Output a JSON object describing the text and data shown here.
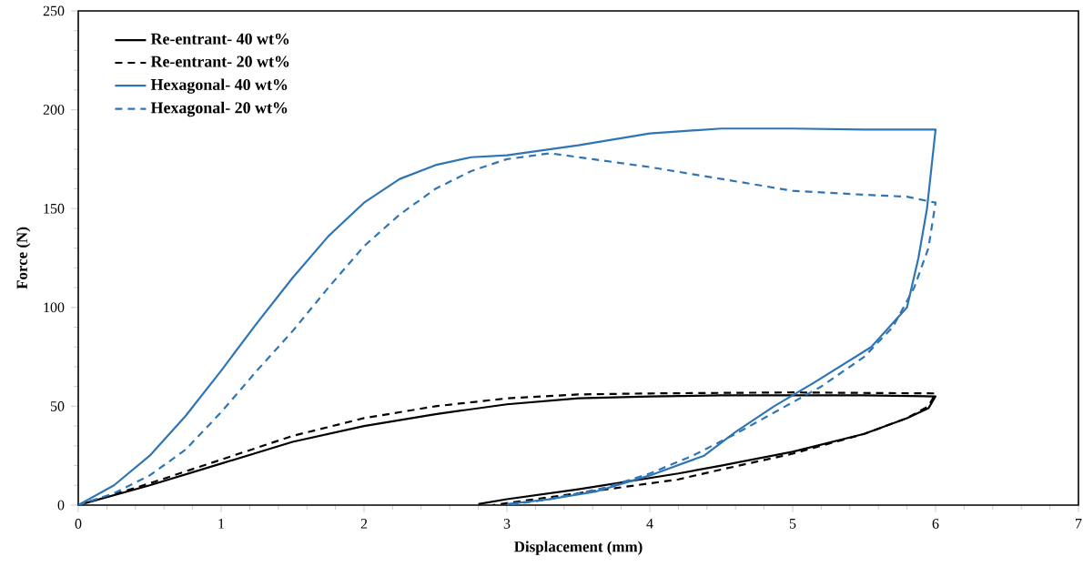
{
  "chart_data": {
    "type": "line",
    "xlabel": "Displacement (mm)",
    "ylabel": "Force (N)",
    "xlim": [
      0,
      7
    ],
    "ylim": [
      0,
      250
    ],
    "xticks": [
      0,
      1,
      2,
      3,
      4,
      5,
      6,
      7
    ],
    "yticks": [
      0,
      50,
      100,
      150,
      200,
      250
    ],
    "grid": false,
    "legend": "top left",
    "marker": "none",
    "series": [
      {
        "name": "Re-entrant- 40 wt%",
        "color": "#000000",
        "line_style": "solid",
        "x": [
          0,
          0.5,
          1,
          1.5,
          2,
          2.5,
          3,
          3.5,
          4,
          4.5,
          5.2,
          5.5,
          6,
          5.95,
          5.8,
          5.5,
          5,
          4.5,
          4.2,
          3.5,
          3,
          2.8
        ],
        "values": [
          0,
          10,
          21,
          32,
          40,
          46,
          51,
          54,
          55,
          55.5,
          55.5,
          55.5,
          55,
          49,
          44,
          36,
          27,
          20,
          16,
          8,
          3,
          0.5
        ]
      },
      {
        "name": "Re-entrant- 20 wt%",
        "color": "#000000",
        "line_style": "dashed",
        "x": [
          0,
          0.5,
          1,
          1.5,
          2,
          2.5,
          3,
          3.5,
          4,
          5,
          6,
          5.95,
          5.8,
          5.5,
          5,
          4.5,
          4.2,
          3.5,
          3,
          2.9
        ],
        "values": [
          0,
          11,
          23,
          35,
          44,
          50,
          54,
          56,
          56.5,
          57,
          56.5,
          50,
          44,
          36,
          26,
          18,
          13,
          6,
          1,
          0
        ]
      },
      {
        "name": "Hexagonal- 40 wt%",
        "color": "#2e75b6",
        "line_style": "solid",
        "x": [
          0,
          0.25,
          0.5,
          0.75,
          1,
          1.25,
          1.5,
          1.75,
          2,
          2.25,
          2.5,
          2.75,
          3,
          3.5,
          4,
          4.5,
          5,
          5.5,
          6,
          5.97,
          5.94,
          5.88,
          5.8,
          5.55,
          5.15,
          4.87,
          4.6,
          4.38,
          4,
          3.63,
          3.3,
          3
        ],
        "values": [
          0,
          10,
          25,
          45,
          68,
          92,
          115,
          136,
          153,
          165,
          172,
          176,
          177,
          182,
          188,
          190.5,
          190.5,
          190,
          190,
          170,
          150,
          125,
          100,
          80,
          62,
          50,
          37,
          25,
          15,
          7,
          3,
          0.5
        ]
      },
      {
        "name": "Hexagonal- 20 wt%",
        "color": "#2e75b6",
        "line_style": "dashed",
        "x": [
          0,
          0.25,
          0.5,
          0.75,
          1,
          1.25,
          1.5,
          1.75,
          2,
          2.25,
          2.5,
          2.75,
          3,
          3.3,
          3.6,
          4,
          4.5,
          5,
          5.5,
          5.8,
          6,
          5.95,
          5.85,
          5.7,
          5.5,
          5.2,
          4.95,
          4.6,
          4.3,
          4,
          3.7,
          3.3,
          3
        ],
        "values": [
          0,
          6,
          15,
          28,
          47,
          68,
          88,
          110,
          131,
          147,
          160,
          169,
          175,
          178,
          175,
          171,
          165,
          159,
          157,
          156,
          153,
          130,
          110,
          90,
          75,
          60,
          50,
          36,
          25,
          16,
          9,
          3,
          0
        ]
      }
    ]
  }
}
